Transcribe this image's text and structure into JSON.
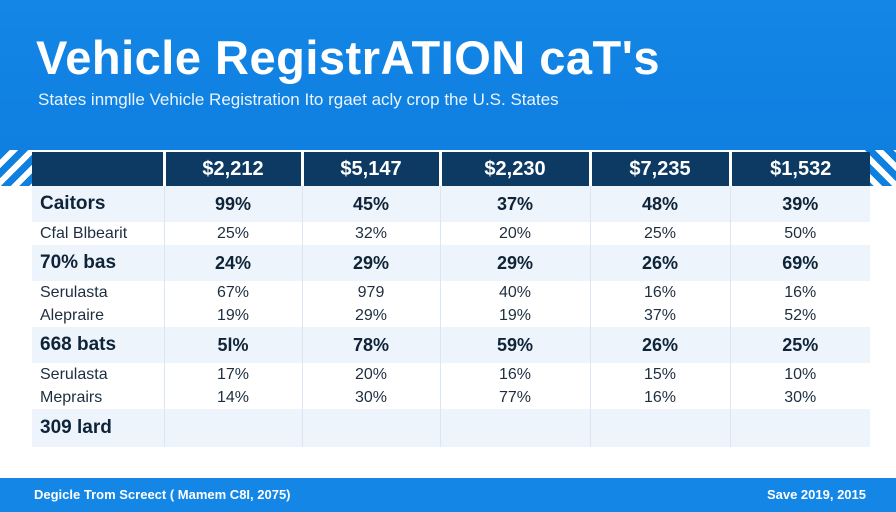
{
  "header": {
    "title": "Vehicle RegistrATION caT's",
    "subtitle": "States inmglle Vehicle Registration Ito rgaet acly crop the U.S. States"
  },
  "chart_data": {
    "type": "table",
    "columns": [
      "",
      "$2,212",
      "$5,147",
      "$2,230",
      "$7,235",
      "$1,532"
    ],
    "rows": [
      {
        "label": "Caitors",
        "values": [
          "99%",
          "45%",
          "37%",
          "48%",
          "39%"
        ],
        "style": "main"
      },
      {
        "label": "Cfal Blbearit",
        "values": [
          "25%",
          "32%",
          "20%",
          "25%",
          "50%"
        ],
        "style": "sub"
      },
      {
        "label": "70% bas",
        "values": [
          "24%",
          "29%",
          "29%",
          "26%",
          "69%"
        ],
        "style": "main"
      },
      {
        "label": "Serulasta",
        "values": [
          "67%",
          "979",
          "40%",
          "16%",
          "16%"
        ],
        "style": "sub"
      },
      {
        "label": "Alepraire",
        "values": [
          "19%",
          "29%",
          "19%",
          "37%",
          "52%"
        ],
        "style": "sub"
      },
      {
        "label": "668 bats",
        "values": [
          "5l%",
          "78%",
          "59%",
          "26%",
          "25%"
        ],
        "style": "main"
      },
      {
        "label": "Serulasta",
        "values": [
          "17%",
          "20%",
          "16%",
          "15%",
          "10%"
        ],
        "style": "sub"
      },
      {
        "label": "Meprairs",
        "values": [
          "14%",
          "30%",
          "77%",
          "16%",
          "30%"
        ],
        "style": "sub"
      },
      {
        "label": "309 lard",
        "values": [
          "",
          "",
          "",
          "",
          ""
        ],
        "style": "main"
      }
    ]
  },
  "footer": {
    "left": "Degicle Trom Screect ( Mamem C8I, 2075)",
    "right": "Save 2019, 2015"
  },
  "colors": {
    "accent": "#1386e6",
    "header_row": "#0d3a63",
    "row_shade": "#eef4fb"
  }
}
